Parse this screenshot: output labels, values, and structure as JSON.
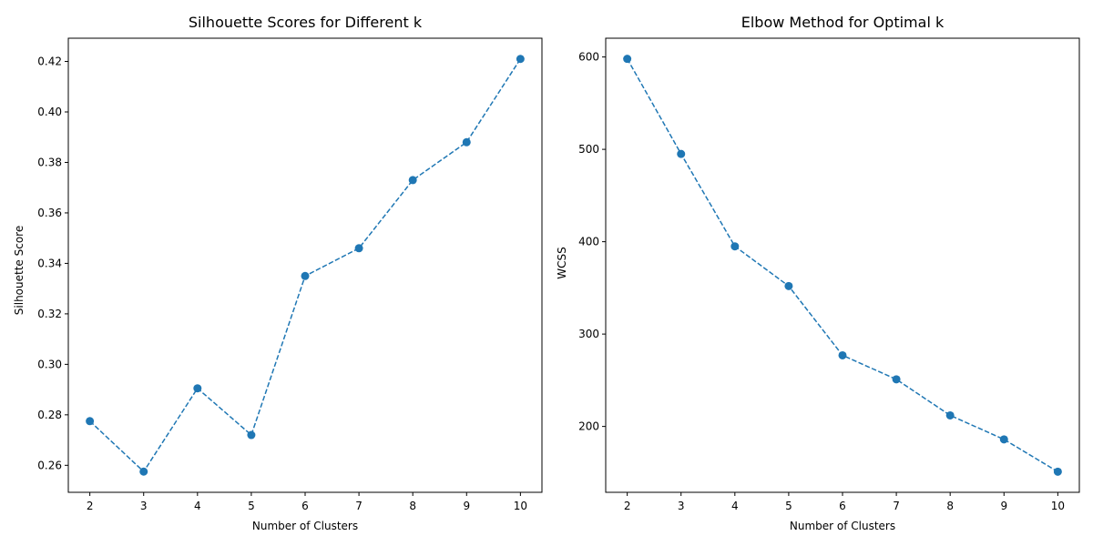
{
  "chart_data": [
    {
      "type": "line",
      "title": "Silhouette Scores for Different k",
      "xlabel": "Number of Clusters",
      "ylabel": "Silhouette Score",
      "x": [
        2,
        3,
        4,
        5,
        6,
        7,
        8,
        9,
        10
      ],
      "series": [
        {
          "values": [
            0.2775,
            0.2575,
            0.2905,
            0.272,
            0.335,
            0.346,
            0.373,
            0.388,
            0.421
          ],
          "color": "#1f77b4",
          "line_style": "dashed",
          "marker": "circle"
        }
      ],
      "xlim": [
        1.6,
        10.4
      ],
      "ylim": [
        0.2493,
        0.4292
      ],
      "xticks": [
        2,
        3,
        4,
        5,
        6,
        7,
        8,
        9,
        10
      ],
      "yticks": [
        0.26,
        0.28,
        0.3,
        0.32,
        0.34,
        0.36,
        0.38,
        0.4,
        0.42
      ],
      "ytick_labels": [
        "0.26",
        "0.28",
        "0.30",
        "0.32",
        "0.34",
        "0.36",
        "0.38",
        "0.40",
        "0.42"
      ],
      "grid": false,
      "legend": "none"
    },
    {
      "type": "line",
      "title": "Elbow Method for Optimal k",
      "xlabel": "Number of Clusters",
      "ylabel": "WCSS",
      "x": [
        2,
        3,
        4,
        5,
        6,
        7,
        8,
        9,
        10
      ],
      "series": [
        {
          "values": [
            598,
            495,
            395,
            352,
            277,
            251,
            212,
            186,
            151
          ],
          "color": "#1f77b4",
          "line_style": "dashed",
          "marker": "circle"
        }
      ],
      "xlim": [
        1.6,
        10.4
      ],
      "ylim": [
        128.7,
        620.3
      ],
      "xticks": [
        2,
        3,
        4,
        5,
        6,
        7,
        8,
        9,
        10
      ],
      "yticks": [
        200,
        300,
        400,
        500,
        600
      ],
      "ytick_labels": [
        "200",
        "300",
        "400",
        "500",
        "600"
      ],
      "grid": false,
      "legend": "none"
    }
  ]
}
